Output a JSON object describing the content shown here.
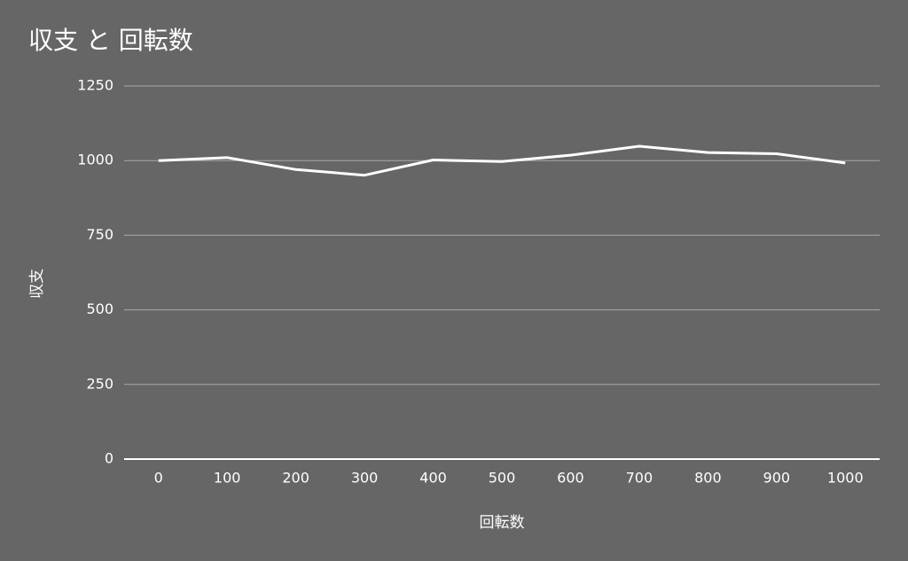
{
  "chart_data": {
    "type": "line",
    "title": "収支 と 回転数",
    "x_label": "回転数",
    "y_label": "収支",
    "x": [
      0,
      100,
      200,
      300,
      400,
      500,
      600,
      700,
      800,
      900,
      1000
    ],
    "series": [
      {
        "color": "#ffffff",
        "values": [
          1000,
          1010,
          970,
          951,
          1002,
          997,
          1018,
          1048,
          1027,
          1023,
          992
        ]
      }
    ],
    "xlim": [
      -50,
      1050
    ],
    "xticks": [
      0,
      100,
      200,
      300,
      400,
      500,
      600,
      700,
      800,
      900,
      1000
    ],
    "ylim": [
      0,
      1250
    ],
    "yticks": [
      0,
      250,
      500,
      750,
      1000,
      1250
    ],
    "grid": true
  }
}
